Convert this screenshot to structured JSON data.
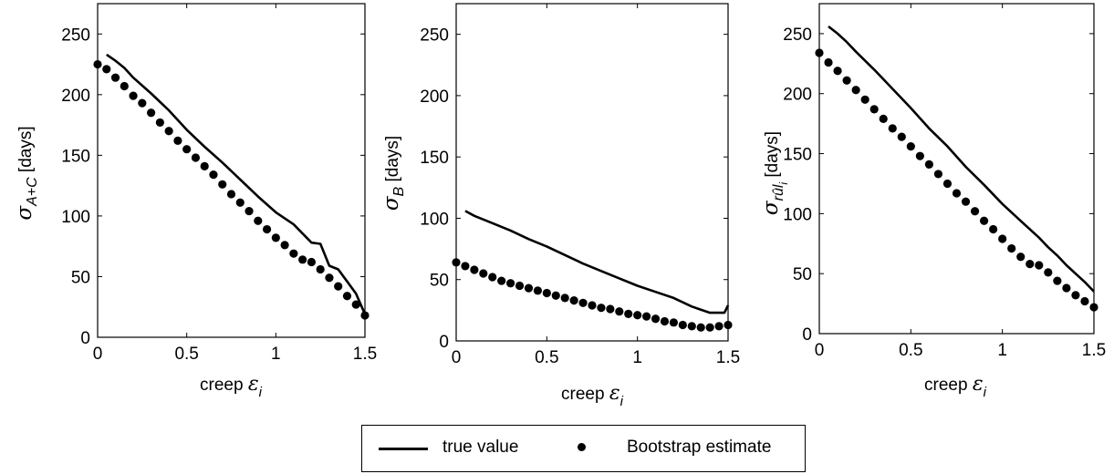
{
  "chart_data": [
    {
      "type": "line",
      "id": "a",
      "xlabel_prefix": "creep ",
      "xlabel_symbol": "ε",
      "xlabel_sub": "i",
      "ylabel_symbol": "σ",
      "ylabel_sub": "A+C",
      "ylabel_unit": " [days]",
      "xlim": [
        0,
        1.5
      ],
      "ylim": [
        0,
        275
      ],
      "xticks": [
        "0",
        "0.5",
        "1",
        "1.5"
      ],
      "xtick_values": [
        0,
        0.5,
        1,
        1.5
      ],
      "yticks": [
        "0",
        "50",
        "100",
        "150",
        "200",
        "250"
      ],
      "ytick_values": [
        0,
        50,
        100,
        150,
        200,
        250
      ],
      "series": [
        {
          "name": "true value",
          "style": "line",
          "x": [
            0.05,
            0.1,
            0.15,
            0.2,
            0.3,
            0.4,
            0.5,
            0.6,
            0.7,
            0.8,
            0.9,
            1.0,
            1.1,
            1.2,
            1.25,
            1.3,
            1.35,
            1.4,
            1.45,
            1.5
          ],
          "y": [
            233,
            228,
            222,
            214,
            201,
            187,
            171,
            157,
            144,
            130,
            116,
            103,
            93,
            78,
            77,
            59,
            56,
            46,
            36,
            19
          ]
        },
        {
          "name": "Bootstrap estimate",
          "style": "dots",
          "x": [
            0,
            0.05,
            0.1,
            0.15,
            0.2,
            0.25,
            0.3,
            0.35,
            0.4,
            0.45,
            0.5,
            0.55,
            0.6,
            0.65,
            0.7,
            0.75,
            0.8,
            0.85,
            0.9,
            0.95,
            1.0,
            1.05,
            1.1,
            1.15,
            1.2,
            1.25,
            1.3,
            1.35,
            1.4,
            1.45,
            1.5
          ],
          "y": [
            225,
            221,
            214,
            207,
            199,
            193,
            185,
            177,
            170,
            162,
            155,
            148,
            141,
            134,
            126,
            118,
            111,
            104,
            96,
            89,
            82,
            76,
            69,
            64,
            62,
            56,
            49,
            42,
            34,
            27,
            18
          ]
        }
      ]
    },
    {
      "type": "line",
      "id": "b",
      "xlabel_prefix": "creep ",
      "xlabel_symbol": "ε",
      "xlabel_sub": "i",
      "ylabel_symbol": "σ",
      "ylabel_sub": "B",
      "ylabel_unit": " [days]",
      "xlim": [
        0,
        1.5
      ],
      "ylim": [
        0,
        275
      ],
      "xticks": [
        "0",
        "0.5",
        "1",
        "1.5"
      ],
      "xtick_values": [
        0,
        0.5,
        1,
        1.5
      ],
      "yticks": [
        "0",
        "50",
        "100",
        "150",
        "200",
        "250"
      ],
      "ytick_values": [
        0,
        50,
        100,
        150,
        200,
        250
      ],
      "series": [
        {
          "name": "true value",
          "style": "line",
          "x": [
            0.05,
            0.1,
            0.2,
            0.3,
            0.4,
            0.5,
            0.6,
            0.7,
            0.8,
            0.9,
            1.0,
            1.1,
            1.2,
            1.3,
            1.4,
            1.45,
            1.48,
            1.5
          ],
          "y": [
            106,
            102,
            96,
            90,
            83,
            77,
            70,
            63,
            57,
            51,
            45,
            40,
            35,
            28,
            23,
            23,
            23,
            29
          ]
        },
        {
          "name": "Bootstrap estimate",
          "style": "dots",
          "x": [
            0,
            0.05,
            0.1,
            0.15,
            0.2,
            0.25,
            0.3,
            0.35,
            0.4,
            0.45,
            0.5,
            0.55,
            0.6,
            0.65,
            0.7,
            0.75,
            0.8,
            0.85,
            0.9,
            0.95,
            1.0,
            1.05,
            1.1,
            1.15,
            1.2,
            1.25,
            1.3,
            1.35,
            1.4,
            1.45,
            1.5
          ],
          "y": [
            64,
            61,
            58,
            55,
            52,
            49,
            47,
            45,
            43,
            41,
            39,
            37,
            35,
            33,
            31,
            29,
            27,
            26,
            24,
            22,
            21,
            20,
            18,
            16,
            15,
            13,
            12,
            11,
            11,
            12,
            13
          ]
        }
      ]
    },
    {
      "type": "line",
      "id": "c",
      "xlabel_prefix": "creep ",
      "xlabel_symbol": "ε",
      "xlabel_sub": "i",
      "ylabel_symbol": "σ",
      "ylabel_sub": "rûl",
      "ylabel_subsub": "i",
      "ylabel_unit": " [days]",
      "xlim": [
        0,
        1.5
      ],
      "ylim": [
        0,
        275
      ],
      "xticks": [
        "0",
        "0.5",
        "1",
        "1.5"
      ],
      "xtick_values": [
        0,
        0.5,
        1,
        1.5
      ],
      "yticks": [
        "0",
        "50",
        "100",
        "150",
        "200",
        "250"
      ],
      "ytick_values": [
        0,
        50,
        100,
        150,
        200,
        250
      ],
      "series": [
        {
          "name": "true value",
          "style": "line",
          "x": [
            0.05,
            0.1,
            0.15,
            0.2,
            0.3,
            0.4,
            0.5,
            0.6,
            0.7,
            0.8,
            0.9,
            1.0,
            1.1,
            1.2,
            1.25,
            1.3,
            1.35,
            1.4,
            1.45,
            1.5
          ],
          "y": [
            256,
            250,
            243,
            235,
            220,
            204,
            188,
            171,
            156,
            139,
            124,
            108,
            94,
            80,
            72,
            65,
            57,
            50,
            43,
            35
          ]
        },
        {
          "name": "Bootstrap estimate",
          "style": "dots",
          "x": [
            0,
            0.05,
            0.1,
            0.15,
            0.2,
            0.25,
            0.3,
            0.35,
            0.4,
            0.45,
            0.5,
            0.55,
            0.6,
            0.65,
            0.7,
            0.75,
            0.8,
            0.85,
            0.9,
            0.95,
            1.0,
            1.05,
            1.1,
            1.15,
            1.2,
            1.25,
            1.3,
            1.35,
            1.4,
            1.45,
            1.5
          ],
          "y": [
            234,
            226,
            219,
            211,
            203,
            195,
            187,
            179,
            171,
            164,
            156,
            148,
            141,
            133,
            125,
            117,
            110,
            102,
            94,
            87,
            79,
            71,
            64,
            58,
            57,
            51,
            44,
            38,
            32,
            27,
            22
          ]
        }
      ]
    }
  ],
  "legend": {
    "entries": [
      "true value",
      "Bootstrap estimate"
    ],
    "placement": "bottom-center"
  }
}
